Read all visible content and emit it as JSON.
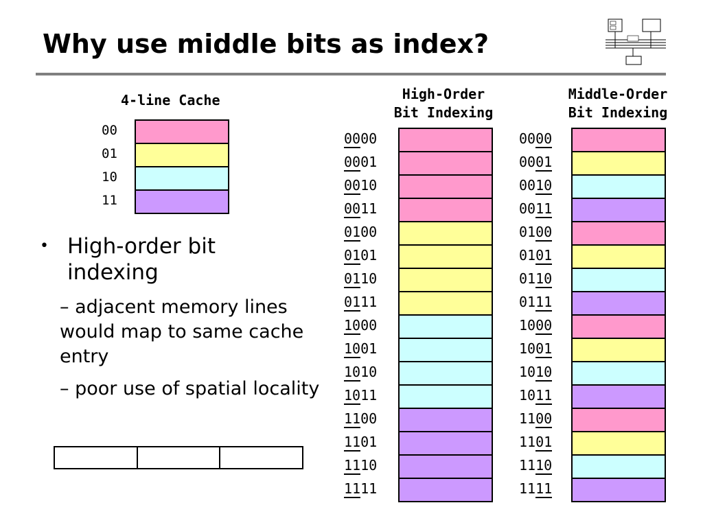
{
  "slide": {
    "title": "Why use middle bits as index?"
  },
  "colors": {
    "pink": "#ff99cc",
    "yellow": "#ffff99",
    "cyan": "#ccffff",
    "purple": "#cc99ff"
  },
  "cache": {
    "title": "4-line Cache",
    "lines": [
      {
        "label": "00",
        "color": "pink"
      },
      {
        "label": "01",
        "color": "yellow"
      },
      {
        "label": "10",
        "color": "cyan"
      },
      {
        "label": "11",
        "color": "purple"
      }
    ]
  },
  "bullet": {
    "text": "High-order bit indexing",
    "subs": [
      "– adjacent memory lines would map to same cache entry",
      "– poor use of spatial locality"
    ]
  },
  "high_order": {
    "heading_line1": "High-Order",
    "heading_line2": "Bit Indexing"
  },
  "middle_order": {
    "heading_line1": "Middle-Order",
    "heading_line2": "Bit Indexing"
  },
  "addresses": [
    "0000",
    "0001",
    "0010",
    "0011",
    "0100",
    "0101",
    "0110",
    "0111",
    "1000",
    "1001",
    "1010",
    "1011",
    "1100",
    "1101",
    "1110",
    "1111"
  ],
  "high_colors": [
    "pink",
    "pink",
    "pink",
    "pink",
    "yellow",
    "yellow",
    "yellow",
    "yellow",
    "cyan",
    "cyan",
    "cyan",
    "cyan",
    "purple",
    "purple",
    "purple",
    "purple"
  ],
  "middle_colors": [
    "pink",
    "yellow",
    "cyan",
    "purple",
    "pink",
    "yellow",
    "cyan",
    "purple",
    "pink",
    "yellow",
    "cyan",
    "purple",
    "pink",
    "yellow",
    "cyan",
    "purple"
  ]
}
